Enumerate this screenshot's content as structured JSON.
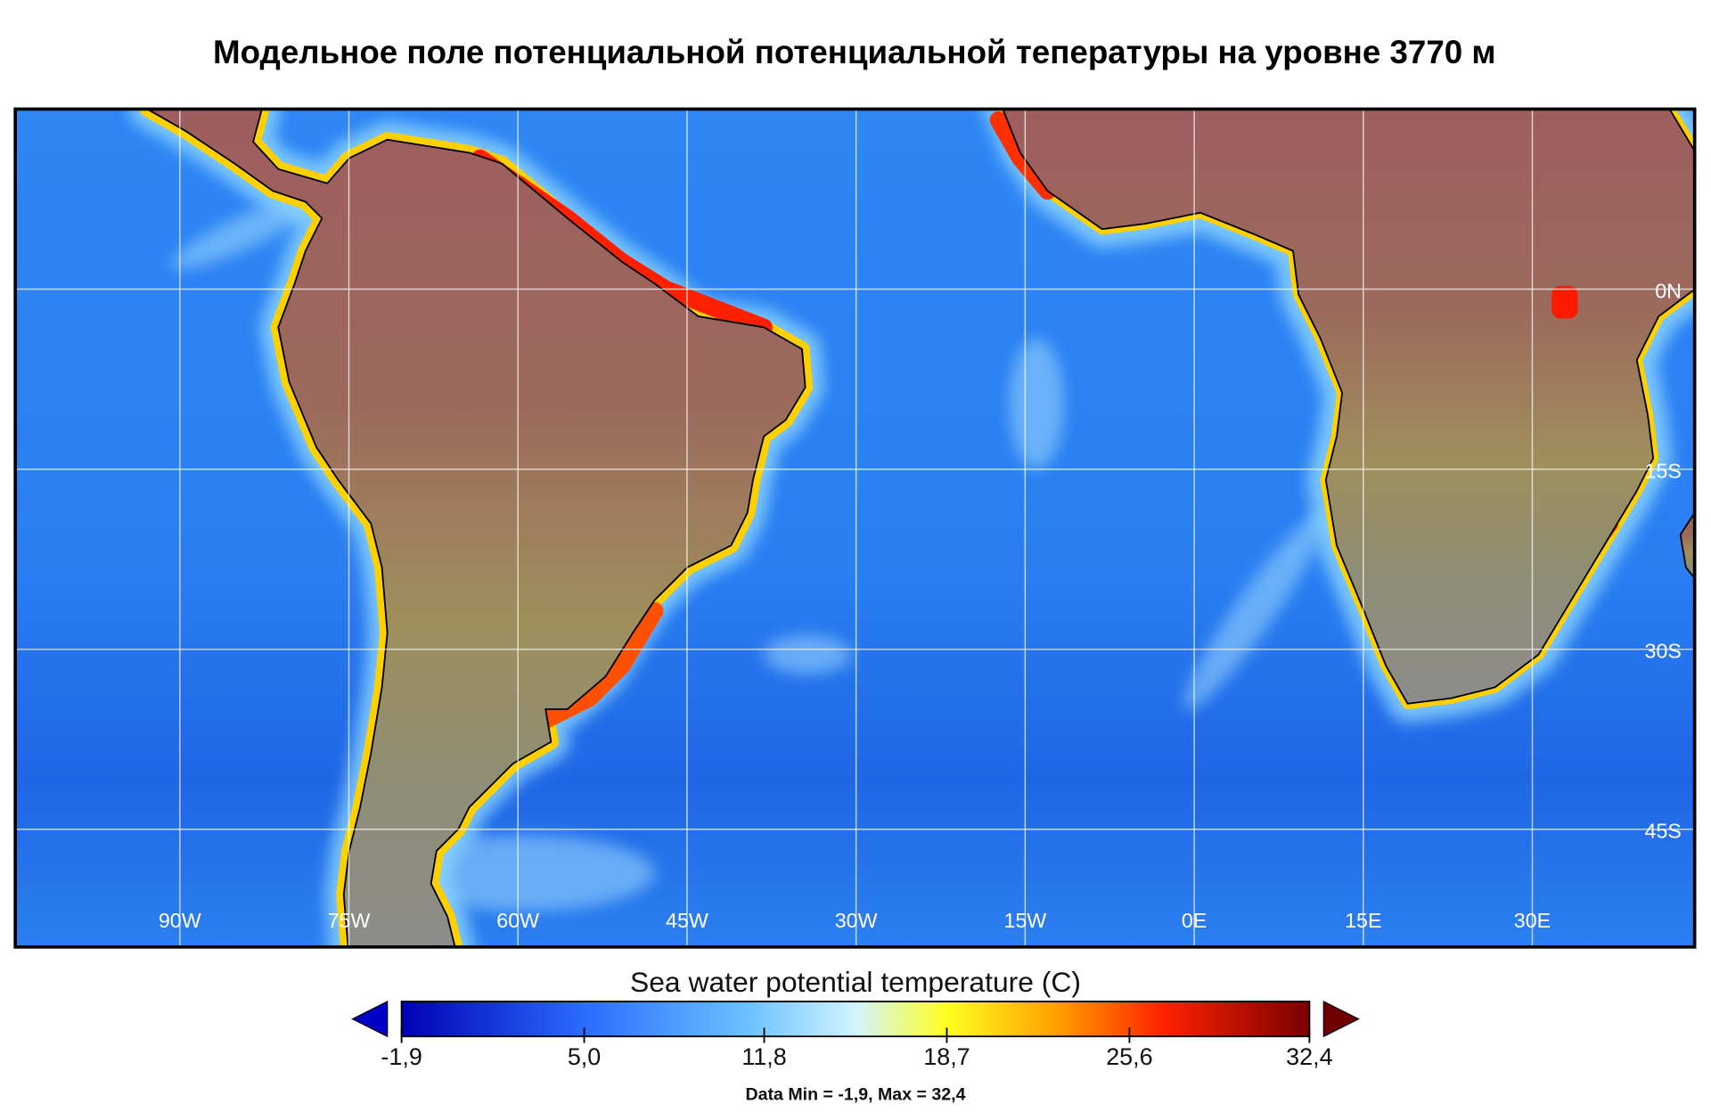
{
  "title": "Модельное поле потенциальной потенциальной тепературы на уровне 3770 м",
  "map": {
    "lon_range": [
      -104.6,
      44.4
    ],
    "lat_range": [
      15,
      -54.8
    ],
    "lon_labels": [
      {
        "value": -90,
        "label": "90W"
      },
      {
        "value": -75,
        "label": "75W"
      },
      {
        "value": -60,
        "label": "60W"
      },
      {
        "value": -45,
        "label": "45W"
      },
      {
        "value": -30,
        "label": "30W"
      },
      {
        "value": -15,
        "label": "15W"
      },
      {
        "value": 0,
        "label": "0E"
      },
      {
        "value": 15,
        "label": "15E"
      },
      {
        "value": 30,
        "label": "30E"
      }
    ],
    "lat_labels": [
      {
        "value": 0,
        "label": "0N"
      },
      {
        "value": -15,
        "label": "15S"
      },
      {
        "value": -30,
        "label": "30S"
      },
      {
        "value": -45,
        "label": "45S"
      }
    ]
  },
  "colorbar": {
    "title": "Sea water potential temperature (C)",
    "ticks": [
      {
        "value": -1.9,
        "label": "-1,9"
      },
      {
        "value": 5.0,
        "label": "5,0"
      },
      {
        "value": 11.8,
        "label": "11,8"
      },
      {
        "value": 18.7,
        "label": "18,7"
      },
      {
        "value": 25.6,
        "label": "25,6"
      },
      {
        "value": 32.4,
        "label": "32,4"
      }
    ],
    "note": "Data Min = -1,9, Max = 32,4"
  }
}
